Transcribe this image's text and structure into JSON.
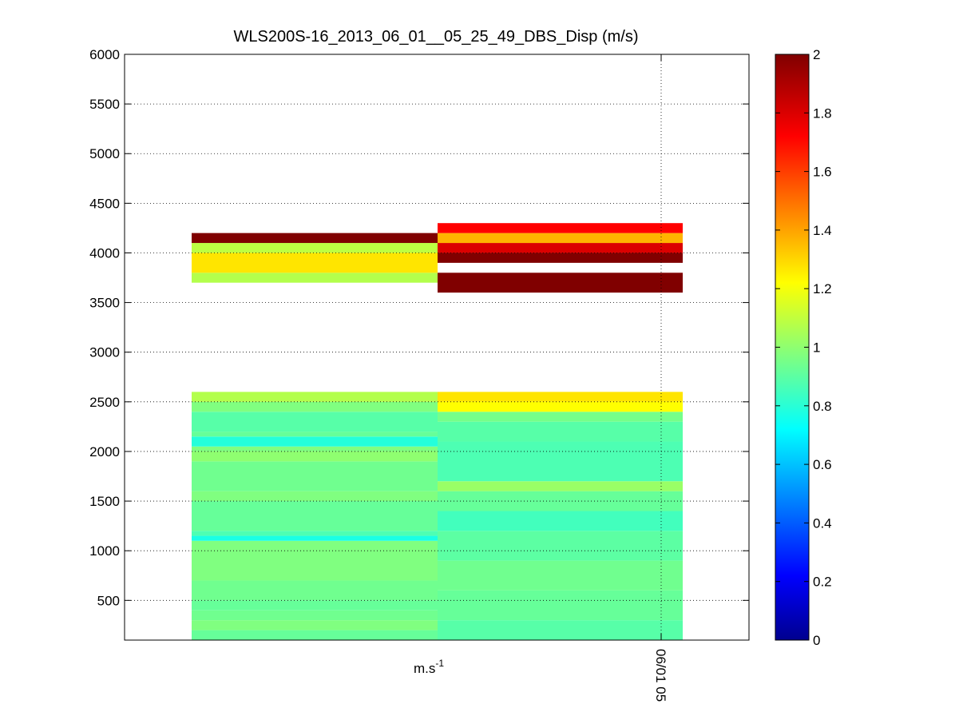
{
  "figure": {
    "title": "WLS200S-16_2013_06_01__05_25_49_DBS_Disp (m/s)",
    "xlabel": "m.s",
    "xlabel_superscript": "-1",
    "xtick_label": "06/01 05"
  },
  "chart_data": {
    "type": "heatmap",
    "title": "WLS200S-16_2013_06_01__05_25_49_DBS_Disp (m/s)",
    "xlabel": "m.s-1",
    "ylabel": "",
    "ylim": [
      100,
      6000
    ],
    "yticks": [
      500,
      1000,
      1500,
      2000,
      2500,
      3000,
      3500,
      4000,
      4500,
      5000,
      5500,
      6000
    ],
    "xticks": [
      "06/01 05"
    ],
    "grid": true,
    "colormap": "jet",
    "color_limits": [
      0,
      2
    ],
    "colorbar_ticks": [
      0,
      0.2,
      0.4,
      0.6,
      0.8,
      1,
      1.2,
      1.4,
      1.6,
      1.8,
      2
    ],
    "range_gate_m": 100,
    "columns": [
      {
        "column": 1,
        "cells": [
          {
            "y": [
              100,
              200
            ],
            "value": 0.95
          },
          {
            "y": [
              200,
              300
            ],
            "value": 1.0
          },
          {
            "y": [
              300,
              400
            ],
            "value": 0.97
          },
          {
            "y": [
              400,
              500
            ],
            "value": 0.95
          },
          {
            "y": [
              500,
              700
            ],
            "value": 0.97
          },
          {
            "y": [
              700,
              1100
            ],
            "value": 1.0
          },
          {
            "y": [
              1100,
              1150
            ],
            "value": 0.8
          },
          {
            "y": [
              1150,
              1200
            ],
            "value": 0.9
          },
          {
            "y": [
              1200,
              1500
            ],
            "value": 0.95
          },
          {
            "y": [
              1500,
              1600
            ],
            "value": 1.0
          },
          {
            "y": [
              1600,
              1900
            ],
            "value": 0.97
          },
          {
            "y": [
              1900,
              2000
            ],
            "value": 1.03
          },
          {
            "y": [
              2000,
              2050
            ],
            "value": 1.0
          },
          {
            "y": [
              2050,
              2150
            ],
            "value": 0.82
          },
          {
            "y": [
              2150,
              2200
            ],
            "value": 0.95
          },
          {
            "y": [
              2200,
              2400
            ],
            "value": 0.92
          },
          {
            "y": [
              2400,
              2500
            ],
            "value": 1.0
          },
          {
            "y": [
              2500,
              2600
            ],
            "value": 1.1
          },
          {
            "y": [
              3700,
              3800
            ],
            "value": 1.1
          },
          {
            "y": [
              3800,
              4000
            ],
            "value": 1.3
          },
          {
            "y": [
              4000,
              4100
            ],
            "value": 1.12
          },
          {
            "y": [
              4100,
              4200
            ],
            "value": 2.0
          }
        ]
      },
      {
        "column": 2,
        "cells": [
          {
            "y": [
              100,
              300
            ],
            "value": 0.92
          },
          {
            "y": [
              300,
              600
            ],
            "value": 0.95
          },
          {
            "y": [
              600,
              900
            ],
            "value": 0.97
          },
          {
            "y": [
              900,
              1200
            ],
            "value": 0.93
          },
          {
            "y": [
              1200,
              1400
            ],
            "value": 0.88
          },
          {
            "y": [
              1400,
              1600
            ],
            "value": 0.95
          },
          {
            "y": [
              1600,
              1700
            ],
            "value": 1.05
          },
          {
            "y": [
              1700,
              2100
            ],
            "value": 0.9
          },
          {
            "y": [
              2100,
              2300
            ],
            "value": 0.92
          },
          {
            "y": [
              2300,
              2400
            ],
            "value": 0.98
          },
          {
            "y": [
              2400,
              2500
            ],
            "value": 1.25
          },
          {
            "y": [
              2500,
              2600
            ],
            "value": 1.3
          },
          {
            "y": [
              3600,
              3800
            ],
            "value": 2.0
          },
          {
            "y": [
              3900,
              4000
            ],
            "value": 2.0
          },
          {
            "y": [
              4000,
              4100
            ],
            "value": 1.82
          },
          {
            "y": [
              4100,
              4200
            ],
            "value": 1.4
          },
          {
            "y": [
              4200,
              4300
            ],
            "value": 1.75
          }
        ]
      }
    ]
  }
}
